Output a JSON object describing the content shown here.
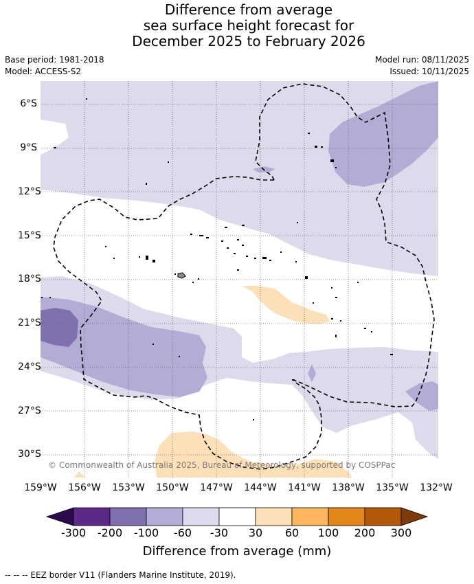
{
  "title": {
    "line1": "Difference from average",
    "line2": "sea surface height forecast for",
    "line3": "December 2025 to February 2026"
  },
  "meta": {
    "base_period": "Base period: 1981-2018",
    "model": "Model: ACCESS-S2",
    "model_run": "Model run: 08/11/2025",
    "issued": "Issued: 10/11/2025"
  },
  "map": {
    "lat_labels": [
      "6°S",
      "9°S",
      "12°S",
      "15°S",
      "18°S",
      "21°S",
      "24°S",
      "27°S",
      "30°S"
    ],
    "lon_labels": [
      "159°W",
      "156°W",
      "153°W",
      "150°W",
      "147°W",
      "144°W",
      "141°W",
      "138°W",
      "135°W",
      "132°W"
    ],
    "copyright": "© Commonwealth of Australia 2025, Bureau of Meteorology, supported by COSPPac"
  },
  "colorbar": {
    "labels": [
      "-300",
      "-200",
      "-100",
      "-60",
      "-30",
      "30",
      "60",
      "100",
      "200",
      "300"
    ],
    "colors": {
      "under": "#2d0a4e",
      "neg300_200": "#5b2a86",
      "neg200_100": "#8070ae",
      "neg100_60": "#b3acd4",
      "neg60_30": "#dcdbec",
      "neutral": "#ffffff",
      "pos30_60": "#fde0b8",
      "pos60_100": "#fbb65e",
      "pos100_200": "#e2861a",
      "pos200_300": "#b35a0a",
      "over": "#7f3b08"
    },
    "title": "Difference from average (mm)"
  },
  "footer": {
    "legend": "--  --  -- EEZ border V11 (Flanders Marine Institute, 2019)."
  }
}
